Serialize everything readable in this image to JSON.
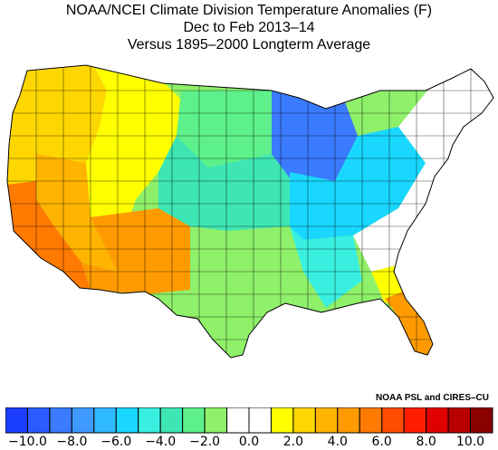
{
  "title": {
    "line1": "NOAA/NCEI Climate Division Temperature Anomalies (F)",
    "line2": "Dec to Feb 2013–14",
    "line3": "Versus 1895–2000 Longterm Average"
  },
  "credit": "NOAA PSL and CIRES–CU",
  "legend": {
    "colors": [
      "#1c3fff",
      "#2a5bff",
      "#3b7bff",
      "#3f9aff",
      "#2fb9ff",
      "#19d7ff",
      "#39f0e0",
      "#3ee6b4",
      "#5ef08a",
      "#8ff06a",
      "#ffffff",
      "#ffffff",
      "#ffff00",
      "#ffd700",
      "#ffb400",
      "#ff9b00",
      "#ff7a00",
      "#ff4d00",
      "#ff1e00",
      "#e00000",
      "#b80000",
      "#8b0000"
    ],
    "tick_labels": [
      "−10.0",
      "−8.0",
      "−6.0",
      "−4.0",
      "−2.0",
      "0.0",
      "2.0",
      "4.0",
      "6.0",
      "8.0",
      "10.0"
    ]
  },
  "map_data": {
    "regions": [
      {
        "name": "pacific-northwest",
        "color": "#ffd700"
      },
      {
        "name": "california",
        "color": "#ff7a00"
      },
      {
        "name": "great-basin",
        "color": "#ffb400"
      },
      {
        "name": "southwest",
        "color": "#ff9b00"
      },
      {
        "name": "rockies",
        "color": "#ffff00"
      },
      {
        "name": "northern-plains",
        "color": "#5ef08a"
      },
      {
        "name": "central-plains",
        "color": "#3ee6b4"
      },
      {
        "name": "southern-plains",
        "color": "#8ff06a"
      },
      {
        "name": "upper-midwest",
        "color": "#3b7bff"
      },
      {
        "name": "midwest",
        "color": "#19d7ff"
      },
      {
        "name": "lower-mississippi",
        "color": "#39f0e0"
      },
      {
        "name": "southeast",
        "color": "#8ff06a"
      },
      {
        "name": "northeast",
        "color": "#ffffff"
      },
      {
        "name": "florida",
        "color": "#ff9b00"
      }
    ]
  }
}
